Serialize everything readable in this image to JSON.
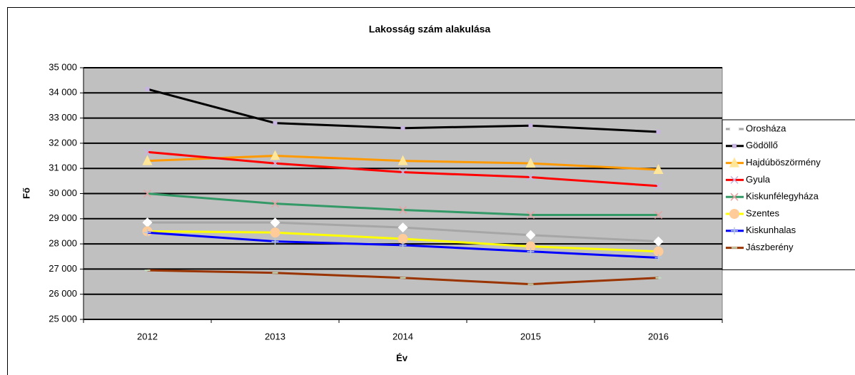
{
  "chart_data": {
    "type": "line",
    "title": "Lakosság szám alakulása",
    "xlabel": "Év",
    "ylabel": "Fő",
    "categories": [
      "2012",
      "2013",
      "2014",
      "2015",
      "2016"
    ],
    "ylim": [
      25000,
      35000
    ],
    "yticks": [
      {
        "value": 25000,
        "label": "25 000"
      },
      {
        "value": 26000,
        "label": "26 000"
      },
      {
        "value": 27000,
        "label": "27 000"
      },
      {
        "value": 28000,
        "label": "28 000"
      },
      {
        "value": 29000,
        "label": "29 000"
      },
      {
        "value": 30000,
        "label": "30 000"
      },
      {
        "value": 31000,
        "label": "31 000"
      },
      {
        "value": 32000,
        "label": "32 000"
      },
      {
        "value": 33000,
        "label": "33 000"
      },
      {
        "value": 34000,
        "label": "34 000"
      },
      {
        "value": 35000,
        "label": "35 000"
      }
    ],
    "grid": true,
    "legend": "right",
    "series": [
      {
        "name": "Orosháza",
        "color": "#a6a6a6",
        "marker": "diamond",
        "marker_color": "#ffffff",
        "values": [
          28850,
          28850,
          28650,
          28350,
          28100
        ]
      },
      {
        "name": "Gödöllő",
        "color": "#000000",
        "marker": "square",
        "marker_color": "#c8b4e0",
        "values": [
          34150,
          32800,
          32600,
          32700,
          32450
        ]
      },
      {
        "name": "Hajdúböszörmény",
        "color": "#ff9900",
        "marker": "triangle",
        "marker_color": "#ffe699",
        "values": [
          31300,
          31500,
          31300,
          31200,
          30950
        ]
      },
      {
        "name": "Gyula",
        "color": "#ff0000",
        "marker": "x",
        "marker_color": "#c8b4e0",
        "values": [
          31650,
          31200,
          30850,
          30650,
          30300
        ]
      },
      {
        "name": "Kiskunfélegyháza",
        "color": "#339966",
        "marker": "x",
        "marker_color": "#e6a0a0",
        "values": [
          30000,
          29600,
          29350,
          29150,
          29150
        ]
      },
      {
        "name": "Szentes",
        "color": "#ffff00",
        "marker": "circle",
        "marker_color": "#ffcc99",
        "values": [
          28500,
          28450,
          28200,
          27900,
          27700
        ]
      },
      {
        "name": "Kiskunhalas",
        "color": "#0000ff",
        "marker": "plus",
        "marker_color": "#b4c8e0",
        "values": [
          28450,
          28100,
          27950,
          27700,
          27450
        ]
      },
      {
        "name": "Jászberény",
        "color": "#993300",
        "marker": "dash",
        "marker_color": "#c0e0c0",
        "values": [
          26950,
          26850,
          26650,
          26400,
          26650
        ]
      }
    ]
  }
}
